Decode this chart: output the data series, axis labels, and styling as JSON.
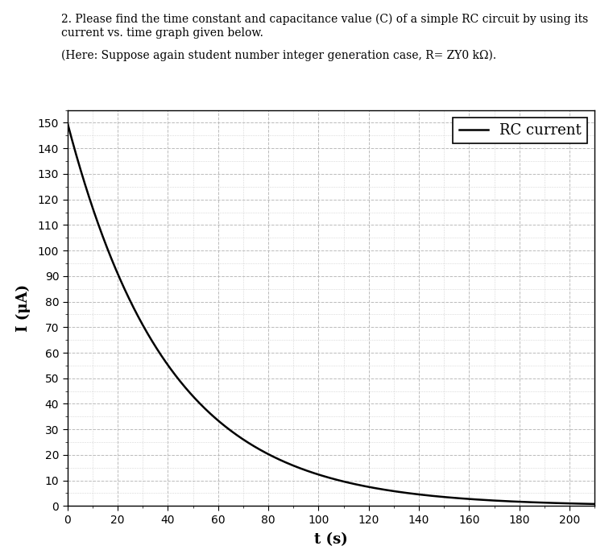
{
  "header_line1": "2. Please find the time constant and capacitance value (C) of a simple RC circuit by using its",
  "header_line2": "current vs. time graph given below.",
  "header_line3": "(Here: Suppose again student number integer generation case, R= ZY0 kΩ).",
  "xlabel": "t (s)",
  "ylabel": "I (μA)",
  "xlim": [
    0,
    210
  ],
  "ylim": [
    0,
    155
  ],
  "xticks": [
    0,
    20,
    40,
    60,
    80,
    100,
    120,
    140,
    160,
    180,
    200
  ],
  "yticks": [
    0,
    10,
    20,
    30,
    40,
    50,
    60,
    70,
    80,
    90,
    100,
    110,
    120,
    130,
    140,
    150
  ],
  "I0": 150,
  "tau": 40,
  "curve_color": "#000000",
  "grid_major_color": "#bbbbbb",
  "grid_minor_color": "#cccccc",
  "legend_label": "RC current",
  "background_color": "#ffffff",
  "fig_width": 7.61,
  "fig_height": 6.83,
  "dpi": 100,
  "header_fontsize": 10,
  "axis_label_fontsize": 13,
  "tick_fontsize": 10,
  "legend_fontsize": 13
}
